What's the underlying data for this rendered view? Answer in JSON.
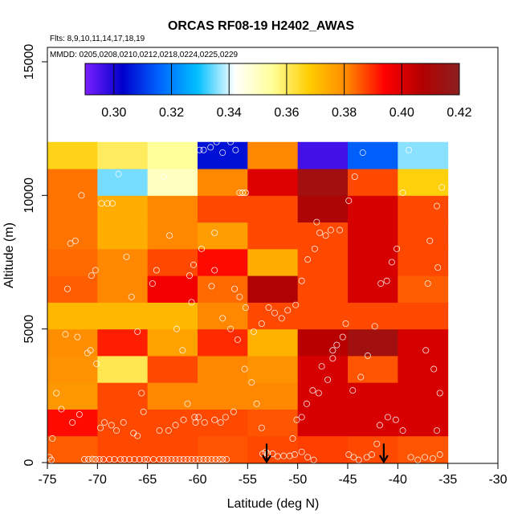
{
  "chart_data": {
    "type": "heatmap",
    "title": "ORCAS RF08-19 H2402_AWAS",
    "annotations": [
      "Flts: 8,9,10,11,14,17,18,19",
      "MMDD: 0205,0208,0210,0212,0218,0224,0225,0229"
    ],
    "xlabel": "Latitude (deg N)",
    "ylabel": "Altitude (m)",
    "xlim": [
      -75,
      -30
    ],
    "ylim": [
      0,
      16000
    ],
    "x_ticks": [
      -75,
      -70,
      -65,
      -60,
      -55,
      -50,
      -45,
      -40,
      -35,
      -30
    ],
    "x_tick_labels": [
      "-75",
      "-70",
      "-65",
      "-60",
      "-55",
      "-50",
      "-45",
      "-40",
      "-35",
      "-30"
    ],
    "y_ticks": [
      0,
      5000,
      10000,
      15000
    ],
    "y_tick_labels": [
      "0",
      "5000",
      "10000",
      "15000"
    ],
    "colorbar": {
      "min": 0.29,
      "max": 0.42,
      "ticks": [
        0.3,
        0.32,
        0.34,
        0.36,
        0.38,
        0.4,
        0.42
      ],
      "tick_labels": [
        "0.30",
        "0.32",
        "0.34",
        "0.36",
        "0.38",
        "0.40",
        "0.42"
      ],
      "stops": [
        "#7b1fff",
        "#0000cc",
        "#0066ff",
        "#00bfff",
        "#ffffff",
        "#ffff99",
        "#ffcc00",
        "#ff8800",
        "#ff0000",
        "#b30000",
        "#8b2020"
      ]
    },
    "lat_bin_edges": [
      -75,
      -70,
      -65,
      -60,
      -55,
      -50,
      -45,
      -40,
      -35
    ],
    "alt_bin_edges": [
      0,
      1000,
      2000,
      3000,
      4000,
      5000,
      6000,
      7000,
      8000,
      9000,
      10000,
      11000,
      12000
    ],
    "grid_values": [
      [
        0.385,
        0.387,
        0.387,
        0.386,
        0.387,
        0.388,
        0.387,
        0.386
      ],
      [
        0.393,
        0.387,
        0.387,
        0.387,
        0.386,
        0.401,
        0.401,
        0.401
      ],
      [
        0.378,
        0.387,
        0.381,
        0.381,
        0.381,
        0.401,
        0.401,
        0.401
      ],
      [
        0.379,
        0.361,
        0.387,
        0.381,
        0.379,
        0.401,
        0.386,
        0.401
      ],
      [
        0.38,
        0.391,
        0.376,
        0.39,
        0.373,
        0.406,
        0.413,
        0.401
      ],
      [
        0.372,
        0.372,
        0.372,
        0.381,
        0.387,
        0.387,
        0.387,
        0.387
      ],
      [
        0.385,
        0.381,
        0.396,
        0.384,
        0.408,
        0.387,
        0.401,
        0.385
      ],
      [
        0.384,
        0.381,
        0.387,
        0.393,
        0.374,
        0.387,
        0.401,
        0.387
      ],
      [
        0.383,
        0.374,
        0.381,
        0.377,
        0.387,
        0.387,
        0.401,
        0.387
      ],
      [
        0.383,
        0.374,
        0.381,
        0.387,
        0.387,
        0.409,
        0.401,
        0.387
      ],
      [
        0.383,
        0.335,
        0.35,
        0.381,
        0.4,
        0.413,
        0.387,
        0.367
      ],
      [
        0.366,
        0.36,
        0.355,
        0.305,
        0.381,
        0.296,
        0.315,
        0.336
      ]
    ],
    "flight_points": [
      [
        -74.8,
        200
      ],
      [
        -74.6,
        100
      ],
      [
        -74.5,
        900
      ],
      [
        -74.1,
        2600
      ],
      [
        -73.6,
        2000
      ],
      [
        -73.2,
        4800
      ],
      [
        -73.0,
        6500
      ],
      [
        -72.7,
        8200
      ],
      [
        -72.2,
        8300
      ],
      [
        -71.6,
        10000
      ],
      [
        -71.3,
        120
      ],
      [
        -70.9,
        120
      ],
      [
        -70.5,
        130
      ],
      [
        -70.2,
        120
      ],
      [
        -71.8,
        1800
      ],
      [
        -72.5,
        1500
      ],
      [
        -70.7,
        4200
      ],
      [
        -71.0,
        4100
      ],
      [
        -72.0,
        4700
      ],
      [
        -70.6,
        7000
      ],
      [
        -70.2,
        7200
      ],
      [
        -70.1,
        3700
      ],
      [
        -69.7,
        1300
      ],
      [
        -69.3,
        1500
      ],
      [
        -68.6,
        1400
      ],
      [
        -68.1,
        1200
      ],
      [
        -67.4,
        1500
      ],
      [
        -66.4,
        1100
      ],
      [
        -66.0,
        1000
      ],
      [
        -65.4,
        1900
      ],
      [
        -69.8,
        120
      ],
      [
        -69.4,
        120
      ],
      [
        -68.8,
        120
      ],
      [
        -68.3,
        120
      ],
      [
        -67.7,
        120
      ],
      [
        -67.3,
        120
      ],
      [
        -66.8,
        120
      ],
      [
        -66.3,
        120
      ],
      [
        -65.8,
        120
      ],
      [
        -65.3,
        120
      ],
      [
        -69.6,
        9700
      ],
      [
        -69.0,
        9700
      ],
      [
        -68.5,
        9700
      ],
      [
        -67.9,
        10800
      ],
      [
        -67.1,
        7700
      ],
      [
        -66.6,
        6200
      ],
      [
        -66.0,
        4900
      ],
      [
        -65.6,
        2600
      ],
      [
        -64.5,
        6700
      ],
      [
        -64.1,
        7200
      ],
      [
        -63.4,
        10700
      ],
      [
        -62.8,
        8500
      ],
      [
        -62.1,
        5000
      ],
      [
        -61.5,
        4200
      ],
      [
        -61.0,
        2200
      ],
      [
        -60.8,
        7000
      ],
      [
        -60.6,
        6000
      ],
      [
        -60.2,
        1500
      ],
      [
        -59.9,
        1700
      ],
      [
        -59.6,
        8000
      ],
      [
        -65.0,
        120
      ],
      [
        -64.4,
        120
      ],
      [
        -63.8,
        120
      ],
      [
        -63.4,
        120
      ],
      [
        -63.0,
        120
      ],
      [
        -62.6,
        120
      ],
      [
        -62.2,
        120
      ],
      [
        -61.8,
        120
      ],
      [
        -61.4,
        120
      ],
      [
        -61.0,
        120
      ],
      [
        -60.6,
        120
      ],
      [
        -60.2,
        120
      ],
      [
        -59.8,
        120
      ],
      [
        -59.4,
        120
      ],
      [
        -59.0,
        120
      ],
      [
        -58.6,
        120
      ],
      [
        -58.2,
        120
      ],
      [
        -57.8,
        120
      ],
      [
        -57.5,
        120
      ],
      [
        -57.1,
        120
      ],
      [
        -63.8,
        1200
      ],
      [
        -62.9,
        1200
      ],
      [
        -62.2,
        1400
      ],
      [
        -61.4,
        1600
      ],
      [
        -60.3,
        1700
      ],
      [
        -59.3,
        1500
      ],
      [
        -58.3,
        1600
      ],
      [
        -57.7,
        1500
      ],
      [
        -57.2,
        1700
      ],
      [
        -56.4,
        1900
      ],
      [
        -59.8,
        11700
      ],
      [
        -59.4,
        11700
      ],
      [
        -58.7,
        11800
      ],
      [
        -58.1,
        12000
      ],
      [
        -57.5,
        11600
      ],
      [
        -56.7,
        12000
      ],
      [
        -56.2,
        11700
      ],
      [
        -55.8,
        10100
      ],
      [
        -55.5,
        10100
      ],
      [
        -55.2,
        10100
      ],
      [
        -58.6,
        6600
      ],
      [
        -58.3,
        7200
      ],
      [
        -57.5,
        5400
      ],
      [
        -56.7,
        5000
      ],
      [
        -56.0,
        4600
      ],
      [
        -55.3,
        3500
      ],
      [
        -54.6,
        3000
      ],
      [
        -54.1,
        2200
      ],
      [
        -53.6,
        1300
      ],
      [
        -53.2,
        400
      ],
      [
        -56.3,
        6500
      ],
      [
        -55.8,
        6200
      ],
      [
        -55.2,
        5800
      ],
      [
        -54.4,
        4900
      ],
      [
        -53.6,
        5200
      ],
      [
        -52.9,
        5800
      ],
      [
        -52.3,
        5600
      ],
      [
        -51.6,
        5400
      ],
      [
        -51.0,
        5700
      ],
      [
        -50.2,
        5900
      ],
      [
        -53.5,
        330
      ],
      [
        -53.0,
        330
      ],
      [
        -52.5,
        330
      ],
      [
        -52.0,
        230
      ],
      [
        -51.4,
        250
      ],
      [
        -50.8,
        250
      ],
      [
        -50.3,
        300
      ],
      [
        -49.6,
        400
      ],
      [
        -49.0,
        200
      ],
      [
        -48.4,
        100
      ],
      [
        -50.5,
        900
      ],
      [
        -50.1,
        1600
      ],
      [
        -49.6,
        1700
      ],
      [
        -49.1,
        2200
      ],
      [
        -48.5,
        2700
      ],
      [
        -47.9,
        2600
      ],
      [
        -47.0,
        3100
      ],
      [
        -46.5,
        3900
      ],
      [
        -46.1,
        4400
      ],
      [
        -45.5,
        4700
      ],
      [
        -49.6,
        6800
      ],
      [
        -49.0,
        7600
      ],
      [
        -48.3,
        8000
      ],
      [
        -47.8,
        8600
      ],
      [
        -47.2,
        8500
      ],
      [
        -46.7,
        8700
      ],
      [
        -45.8,
        8700
      ],
      [
        -44.9,
        9800
      ],
      [
        -44.3,
        10700
      ],
      [
        -43.5,
        11600
      ],
      [
        -44.9,
        300
      ],
      [
        -44.4,
        200
      ],
      [
        -43.9,
        100
      ],
      [
        -43.1,
        200
      ],
      [
        -42.6,
        300
      ],
      [
        -42.1,
        700
      ],
      [
        -41.8,
        1400
      ],
      [
        -41.0,
        1700
      ],
      [
        -40.2,
        1600
      ],
      [
        -39.5,
        1200
      ],
      [
        -44.5,
        2700
      ],
      [
        -43.7,
        3200
      ],
      [
        -43.0,
        4000
      ],
      [
        -42.3,
        5100
      ],
      [
        -41.7,
        6700
      ],
      [
        -41.1,
        6800
      ],
      [
        -40.6,
        7500
      ],
      [
        -40.1,
        8000
      ],
      [
        -39.5,
        10100
      ],
      [
        -38.9,
        11700
      ],
      [
        -38.7,
        200
      ],
      [
        -38.0,
        100
      ],
      [
        -37.3,
        200
      ],
      [
        -36.5,
        150
      ],
      [
        -35.8,
        300
      ],
      [
        -36.1,
        1200
      ],
      [
        -35.8,
        2600
      ],
      [
        -36.4,
        3500
      ],
      [
        -37.2,
        4200
      ],
      [
        -36.0,
        7300
      ],
      [
        -37.0,
        6700
      ],
      [
        -36.8,
        8300
      ],
      [
        -36.1,
        9600
      ],
      [
        -35.6,
        10300
      ],
      [
        -48.1,
        9000
      ],
      [
        -46.5,
        4200
      ],
      [
        -45.2,
        5200
      ],
      [
        -47.6,
        3600
      ],
      [
        -58.3,
        8600
      ],
      [
        -60.4,
        7400
      ]
    ],
    "arrows": [
      {
        "lat": -53.1,
        "alt_top": 650,
        "alt_bottom": 0
      },
      {
        "lat": -41.4,
        "alt_top": 650,
        "alt_bottom": 0
      }
    ]
  }
}
